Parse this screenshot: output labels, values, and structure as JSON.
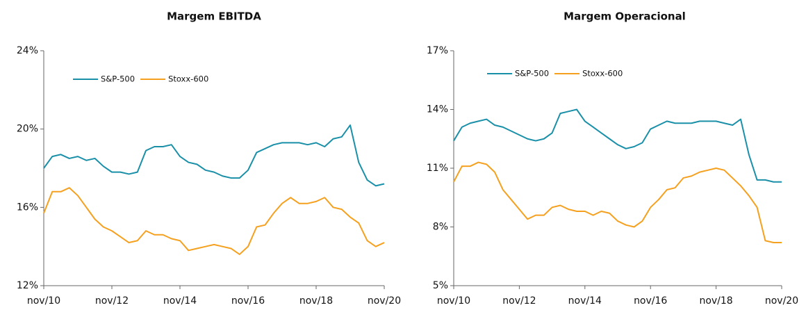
{
  "chart_data": [
    {
      "type": "line",
      "title": "Margem EBITDA",
      "categories": [
        "nov/10",
        null,
        null,
        null,
        null,
        null,
        null,
        null,
        "nov/12",
        null,
        null,
        null,
        null,
        null,
        null,
        null,
        "nov/14",
        null,
        null,
        null,
        null,
        null,
        null,
        null,
        "nov/16",
        null,
        null,
        null,
        null,
        null,
        null,
        null,
        "nov/18",
        null,
        null,
        null,
        null,
        null,
        null,
        null,
        "nov/20"
      ],
      "series": [
        {
          "name": "S&P-500",
          "color": "#1a8fa8",
          "values": [
            18.0,
            18.6,
            18.7,
            18.5,
            18.6,
            18.4,
            18.5,
            18.1,
            17.8,
            17.8,
            17.7,
            17.8,
            18.9,
            19.1,
            19.1,
            19.2,
            18.6,
            18.3,
            18.2,
            17.9,
            17.8,
            17.6,
            17.5,
            17.5,
            17.9,
            18.8,
            19.0,
            19.2,
            19.3,
            19.3,
            19.3,
            19.2,
            19.3,
            19.1,
            19.5,
            19.6,
            20.2,
            18.3,
            17.4,
            17.1,
            17.2
          ]
        },
        {
          "name": "Stoxx-600",
          "color": "#f5a01e",
          "values": [
            15.7,
            16.8,
            16.8,
            17.0,
            16.6,
            16.0,
            15.4,
            15.0,
            14.8,
            14.5,
            14.2,
            14.3,
            14.8,
            14.6,
            14.6,
            14.4,
            14.3,
            13.8,
            13.9,
            14.0,
            14.1,
            14.0,
            13.9,
            13.6,
            14.0,
            15.0,
            15.1,
            15.7,
            16.2,
            16.5,
            16.2,
            16.2,
            16.3,
            16.5,
            16.0,
            15.9,
            15.5,
            15.2,
            14.3,
            14.0,
            14.2
          ]
        }
      ],
      "ylim": [
        12,
        24
      ],
      "yticks": [
        {
          "value": 12,
          "label": "12%"
        },
        {
          "value": 16,
          "label": "16%"
        },
        {
          "value": 20,
          "label": "20%"
        },
        {
          "value": 24,
          "label": "24%"
        }
      ],
      "legend": "upper left"
    },
    {
      "type": "line",
      "title": "Margem Operacional",
      "categories": [
        "nov/10",
        null,
        null,
        null,
        null,
        null,
        null,
        null,
        "nov/12",
        null,
        null,
        null,
        null,
        null,
        null,
        null,
        "nov/14",
        null,
        null,
        null,
        null,
        null,
        null,
        null,
        "nov/16",
        null,
        null,
        null,
        null,
        null,
        null,
        null,
        "nov/18",
        null,
        null,
        null,
        null,
        null,
        null,
        null,
        "nov/20"
      ],
      "series": [
        {
          "name": "S&P-500",
          "color": "#1a8fa8",
          "values": [
            12.4,
            13.1,
            13.3,
            13.4,
            13.5,
            13.2,
            13.1,
            12.9,
            12.7,
            12.5,
            12.4,
            12.5,
            12.8,
            13.8,
            13.9,
            14.0,
            13.4,
            13.1,
            12.8,
            12.5,
            12.2,
            12.0,
            12.1,
            12.3,
            13.0,
            13.2,
            13.4,
            13.3,
            13.3,
            13.3,
            13.4,
            13.4,
            13.4,
            13.3,
            13.2,
            13.5,
            11.7,
            10.4,
            10.4,
            10.3,
            10.3
          ]
        },
        {
          "name": "Stoxx-600",
          "color": "#f5a01e",
          "values": [
            10.3,
            11.1,
            11.1,
            11.3,
            11.2,
            10.8,
            9.9,
            9.4,
            8.9,
            8.4,
            8.6,
            8.6,
            9.0,
            9.1,
            8.9,
            8.8,
            8.8,
            8.6,
            8.8,
            8.7,
            8.3,
            8.1,
            8.0,
            8.3,
            9.0,
            9.4,
            9.9,
            10.0,
            10.5,
            10.6,
            10.8,
            10.9,
            11.0,
            10.9,
            10.5,
            10.1,
            9.6,
            9.0,
            7.3,
            7.2,
            7.2
          ]
        }
      ],
      "ylim": [
        5,
        17
      ],
      "yticks": [
        {
          "value": 5,
          "label": "5%"
        },
        {
          "value": 8,
          "label": "8%"
        },
        {
          "value": 11,
          "label": "11%"
        },
        {
          "value": 14,
          "label": "14%"
        },
        {
          "value": 17,
          "label": "17%"
        }
      ],
      "legend": "upper left"
    }
  ]
}
